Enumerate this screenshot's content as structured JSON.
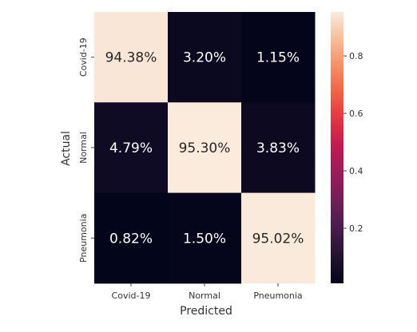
{
  "chart_data": {
    "type": "heatmap",
    "xlabel": "Predicted",
    "ylabel": "Actual",
    "x_categories": [
      "Covid-19",
      "Normal",
      "Pneumonia"
    ],
    "y_categories": [
      "Covid-19",
      "Normal",
      "Pneumonia"
    ],
    "values": [
      [
        0.9438,
        0.032,
        0.0115
      ],
      [
        0.0479,
        0.953,
        0.0383
      ],
      [
        0.0082,
        0.015,
        0.9502
      ]
    ],
    "cell_labels": [
      [
        "94.38%",
        "3.20%",
        "1.15%"
      ],
      [
        "4.79%",
        "95.30%",
        "3.83%"
      ],
      [
        "0.82%",
        "1.50%",
        "95.02%"
      ]
    ],
    "colorbar": {
      "range": [
        0.0082,
        0.953
      ],
      "ticks": [
        0.2,
        0.4,
        0.6,
        0.8
      ],
      "tick_labels": [
        "0.2",
        "0.4",
        "0.6",
        "0.8"
      ],
      "colormap": "rocket"
    },
    "grid": false
  }
}
